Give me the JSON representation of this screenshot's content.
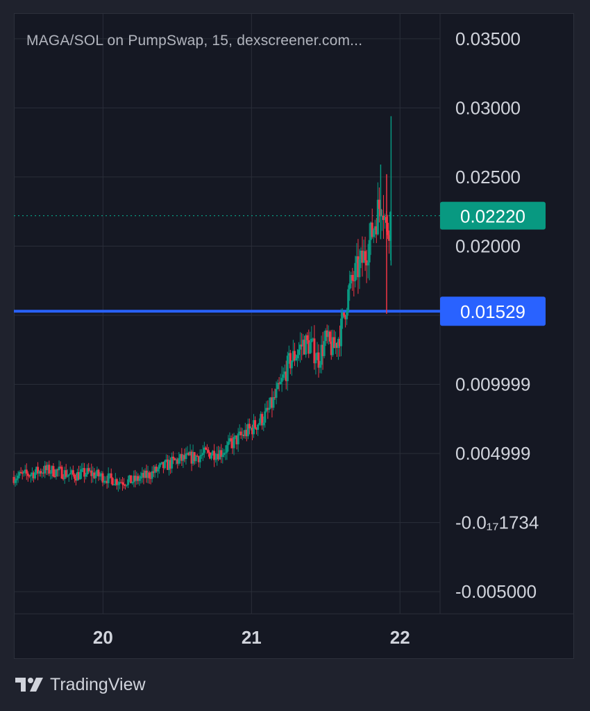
{
  "chart_data": {
    "type": "candlestick",
    "title": "MAGA/SOL on PumpSwap, 15, dexscreener.com...",
    "x_ticks": [
      "20",
      "21",
      "22"
    ],
    "y_ticks": [
      "0.03500",
      "0.03000",
      "0.02500",
      "0.02000",
      "0.009999",
      "0.004999",
      "-0.0₁₇1734",
      "-0.005000"
    ],
    "y_tick_values": [
      0.035,
      0.03,
      0.025,
      0.02,
      0.015,
      0.01,
      0.005,
      0.0,
      -0.005
    ],
    "ylim": [
      -0.0066,
      0.0368
    ],
    "xlim": [
      19.4,
      22.27
    ],
    "grid": true,
    "last_price": {
      "label": "0.02220",
      "value": 0.0222,
      "color": "#089981"
    },
    "horizontal_line": {
      "label": "0.01529",
      "value": 0.01529,
      "color": "#2962ff"
    },
    "colors": {
      "up": "#089981",
      "down": "#f23645",
      "grid": "#2a2e39",
      "axis_text": "#d1d4dc",
      "title_text": "#b2b5be"
    },
    "price_path": [
      [
        19.4,
        0.0033
      ],
      [
        19.5,
        0.0035
      ],
      [
        19.6,
        0.0038
      ],
      [
        19.7,
        0.0037
      ],
      [
        19.8,
        0.0034
      ],
      [
        19.9,
        0.0036
      ],
      [
        20.0,
        0.0033
      ],
      [
        20.1,
        0.003
      ],
      [
        20.2,
        0.003
      ],
      [
        20.3,
        0.0034
      ],
      [
        20.4,
        0.004
      ],
      [
        20.5,
        0.0045
      ],
      [
        20.6,
        0.0047
      ],
      [
        20.7,
        0.005
      ],
      [
        20.8,
        0.0051
      ],
      [
        20.9,
        0.006
      ],
      [
        21.0,
        0.0068
      ],
      [
        21.1,
        0.0078
      ],
      [
        21.15,
        0.0088
      ],
      [
        21.2,
        0.01
      ],
      [
        21.25,
        0.0115
      ],
      [
        21.3,
        0.0122
      ],
      [
        21.35,
        0.013
      ],
      [
        21.4,
        0.0128
      ],
      [
        21.45,
        0.0118
      ],
      [
        21.5,
        0.0132
      ],
      [
        21.55,
        0.0125
      ],
      [
        21.6,
        0.0138
      ],
      [
        21.65,
        0.0165
      ],
      [
        21.7,
        0.018
      ],
      [
        21.75,
        0.019
      ],
      [
        21.8,
        0.0205
      ],
      [
        21.85,
        0.0225
      ],
      [
        21.88,
        0.0235
      ],
      [
        21.91,
        0.021
      ],
      [
        21.94,
        0.0222
      ]
    ]
  },
  "branding": {
    "logo": "tradingview-logo",
    "name": "TradingView"
  }
}
